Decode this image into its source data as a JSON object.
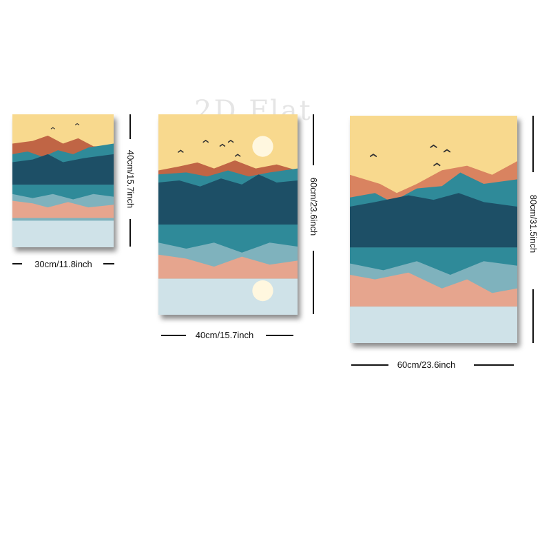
{
  "watermark": "2D Flat",
  "panels": [
    {
      "id": "small",
      "width_label": "30cm/11.8inch",
      "height_label": "40cm/15.7inch"
    },
    {
      "id": "medium",
      "width_label": "40cm/15.7inch",
      "height_label": "60cm/23.6inch"
    },
    {
      "id": "large",
      "width_label": "60cm/23.6inch",
      "height_label": "80cm/31.5inch"
    }
  ],
  "colors": {
    "sky": "#f8d98e",
    "rust": "#c06545",
    "orange": "#d98360",
    "deep_teal": "#1d4f66",
    "teal": "#2f8a99",
    "water": "#7fb2bd",
    "reflection_pink": "#e6a58e",
    "pale_water": "#cfe2e8",
    "sun": "#fff7df"
  }
}
